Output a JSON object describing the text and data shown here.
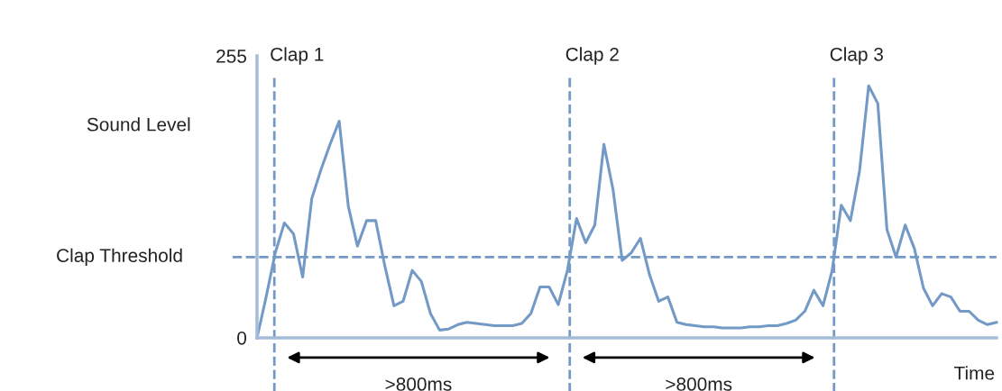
{
  "chart_data": {
    "type": "line",
    "ylabel": "Sound Level",
    "xlabel": "Time",
    "categories": [
      null,
      null,
      null,
      null,
      null,
      null,
      null,
      null,
      null,
      null,
      null,
      null,
      null,
      null,
      null,
      null,
      null,
      null,
      null,
      null,
      null,
      null,
      null,
      null,
      null,
      null,
      null,
      null,
      null,
      null,
      null,
      null,
      null,
      null,
      null,
      null,
      null,
      null,
      null,
      null,
      null,
      null,
      null,
      null,
      null,
      null,
      null,
      null,
      null,
      null,
      null,
      null,
      null,
      null,
      null,
      null,
      null,
      null,
      null,
      null,
      null,
      null,
      null,
      null,
      null,
      null,
      null,
      null,
      null,
      null,
      null,
      null,
      null,
      null,
      null,
      null,
      null,
      null,
      null,
      null,
      null,
      null
    ],
    "series": [
      {
        "color": "#7399c6",
        "values": [
          0,
          37,
          77,
          104,
          94,
          55,
          126,
          152,
          175,
          196,
          119,
          83,
          106,
          106,
          65,
          29,
          33,
          61,
          51,
          22,
          7,
          8,
          12,
          14,
          13,
          12,
          11,
          11,
          11,
          13,
          22,
          46,
          46,
          30,
          61,
          108,
          86,
          102,
          175,
          134,
          70,
          77,
          90,
          57,
          33,
          37,
          14,
          12,
          11,
          10,
          10,
          9,
          9,
          9,
          10,
          10,
          11,
          11,
          13,
          16,
          24,
          43,
          29,
          61,
          120,
          106,
          151,
          228,
          212,
          98,
          73,
          102,
          81,
          45,
          29,
          40,
          37,
          24,
          24,
          16,
          12,
          14
        ]
      }
    ],
    "ylim": [
      0,
      255
    ],
    "yticks": [
      0,
      255
    ],
    "ref_lines": [
      {
        "axis": "y",
        "value": 73,
        "label": "Clap Threshold",
        "color": "#7399c6",
        "line_style": "dashed"
      }
    ],
    "annotations": [
      "Clap 1",
      "Clap 2",
      "Clap 3",
      ">800ms",
      ">800ms"
    ],
    "grid": false,
    "legend": false,
    "marker": "none",
    "line_style": "solid"
  }
}
